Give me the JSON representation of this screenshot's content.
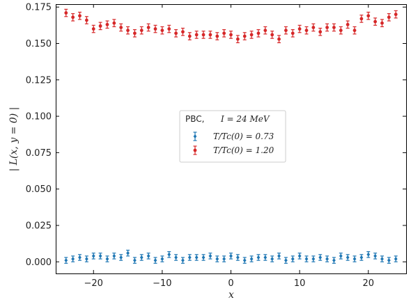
{
  "chart_data": {
    "type": "scatter",
    "xlabel": "x",
    "ylabel": "| L(x, y = 0) |",
    "xlim": [
      -25.5,
      25.5
    ],
    "ylim": [
      -0.008,
      0.177
    ],
    "x_ticks": [
      -20,
      -10,
      0,
      10,
      20
    ],
    "x_tick_labels": [
      "−20",
      "−10",
      "0",
      "10",
      "20"
    ],
    "y_ticks": [
      0.0,
      0.025,
      0.05,
      0.075,
      0.1,
      0.125,
      0.15,
      0.175
    ],
    "y_tick_labels": [
      "0.000",
      "0.025",
      "0.050",
      "0.075",
      "0.100",
      "0.125",
      "0.150",
      "0.175"
    ],
    "grid": false,
    "legend_placement": "center",
    "legend_title": "PBC,",
    "legend_title_suffix": "I = 24 MeV",
    "series": [
      {
        "name": "T/Tc(0) = 0.73",
        "color": "#1f77b4",
        "marker": "diamond",
        "error": 0.002,
        "x": [
          -24,
          -23,
          -22,
          -21,
          -20,
          -19,
          -18,
          -17,
          -16,
          -15,
          -14,
          -13,
          -12,
          -11,
          -10,
          -9,
          -8,
          -7,
          -6,
          -5,
          -4,
          -3,
          -2,
          -1,
          0,
          1,
          2,
          3,
          4,
          5,
          6,
          7,
          8,
          9,
          10,
          11,
          12,
          13,
          14,
          15,
          16,
          17,
          18,
          19,
          20,
          21,
          22,
          23,
          24
        ],
        "values": [
          0.001,
          0.002,
          0.003,
          0.002,
          0.004,
          0.004,
          0.002,
          0.004,
          0.003,
          0.006,
          0.001,
          0.003,
          0.004,
          0.001,
          0.002,
          0.005,
          0.003,
          0.001,
          0.003,
          0.003,
          0.003,
          0.004,
          0.002,
          0.002,
          0.004,
          0.003,
          0.001,
          0.002,
          0.003,
          0.003,
          0.002,
          0.004,
          0.001,
          0.002,
          0.004,
          0.002,
          0.002,
          0.003,
          0.002,
          0.001,
          0.004,
          0.003,
          0.002,
          0.003,
          0.005,
          0.004,
          0.002,
          0.001,
          0.002
        ]
      },
      {
        "name": "T/Tc(0) = 1.20",
        "color": "#d62728",
        "marker": "circle",
        "error": 0.0025,
        "x": [
          -24,
          -23,
          -22,
          -21,
          -20,
          -19,
          -18,
          -17,
          -16,
          -15,
          -14,
          -13,
          -12,
          -11,
          -10,
          -9,
          -8,
          -7,
          -6,
          -5,
          -4,
          -3,
          -2,
          -1,
          0,
          1,
          2,
          3,
          4,
          5,
          6,
          7,
          8,
          9,
          10,
          11,
          12,
          13,
          14,
          15,
          16,
          17,
          18,
          19,
          20,
          21,
          22,
          23,
          24
        ],
        "values": [
          0.171,
          0.168,
          0.169,
          0.166,
          0.16,
          0.162,
          0.163,
          0.164,
          0.161,
          0.159,
          0.157,
          0.159,
          0.161,
          0.16,
          0.159,
          0.16,
          0.157,
          0.158,
          0.155,
          0.156,
          0.156,
          0.156,
          0.155,
          0.157,
          0.156,
          0.153,
          0.155,
          0.156,
          0.157,
          0.159,
          0.156,
          0.153,
          0.159,
          0.157,
          0.16,
          0.159,
          0.161,
          0.158,
          0.161,
          0.161,
          0.159,
          0.163,
          0.159,
          0.167,
          0.169,
          0.165,
          0.164,
          0.168,
          0.17
        ]
      }
    ]
  }
}
